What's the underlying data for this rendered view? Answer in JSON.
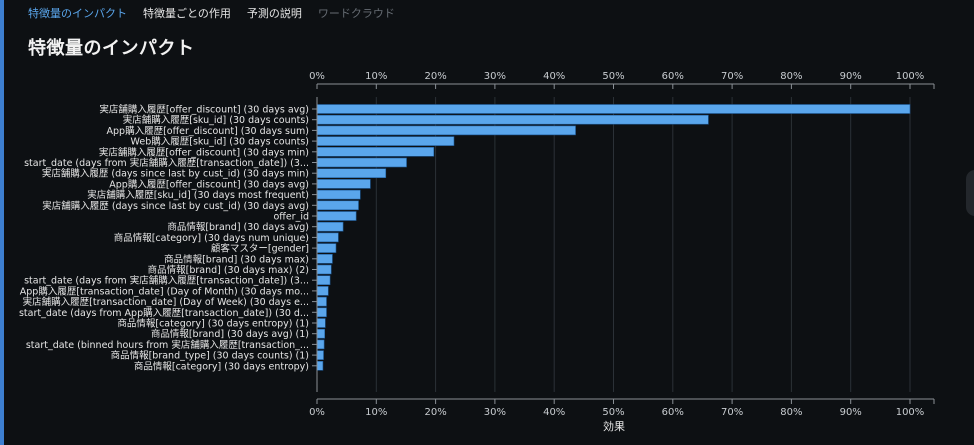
{
  "tabs": [
    {
      "label": "特徴量のインパクト",
      "state": "active"
    },
    {
      "label": "特徴量ごとの作用",
      "state": "normal"
    },
    {
      "label": "予測の説明",
      "state": "normal"
    },
    {
      "label": "ワードクラウド",
      "state": "disabled"
    }
  ],
  "page_title": "特徴量のインパクト",
  "colors": {
    "accent": "#5aa6ec",
    "bar": "#5aa6ec",
    "background": "#0d1013"
  },
  "chart_data": {
    "type": "bar",
    "orientation": "horizontal",
    "xlabel": "効果",
    "xlim": [
      0,
      100
    ],
    "xticks": [
      "0%",
      "10%",
      "20%",
      "30%",
      "40%",
      "50%",
      "60%",
      "70%",
      "80%",
      "90%",
      "100%"
    ],
    "grid": true,
    "categories": [
      "実店舗購入履歴[offer_discount] (30 days avg)",
      "実店舗購入履歴[sku_id] (30 days counts)",
      "App購入履歴[offer_discount] (30 days sum)",
      "Web購入履歴[sku_id] (30 days counts)",
      "実店舗購入履歴[offer_discount] (30 days min)",
      "start_date (days from 実店舗購入履歴[transaction_date]) (3...",
      "実店舗購入履歴 (days since last by cust_id) (30 days min)",
      "App購入履歴[offer_discount] (30 days avg)",
      "実店舗購入履歴[sku_id] (30 days most frequent)",
      "実店舗購入履歴 (days since last by cust_id) (30 days avg)",
      "offer_id",
      "商品情報[brand] (30 days avg)",
      "商品情報[category] (30 days num unique)",
      "顧客マスター[gender]",
      "商品情報[brand] (30 days max)",
      "商品情報[brand] (30 days max) (2)",
      "start_date (days from 実店舗購入履歴[transaction_date]) (3...",
      "App購入履歴[transaction_date] (Day of Month) (30 days mo...",
      "実店舗購入履歴[transaction_date] (Day of Week) (30 days e...",
      "start_date (days from App購入履歴[transaction_date]) (30 d...",
      "商品情報[category] (30 days entropy) (1)",
      "商品情報[brand] (30 days avg) (1)",
      "start_date (binned hours from 実店舗購入履歴[transaction_...",
      "商品情報[brand_type] (30 days counts) (1)",
      "商品情報[category] (30 days entropy)"
    ],
    "values": [
      100,
      66,
      43.6,
      23.1,
      19.7,
      15.1,
      11.6,
      9.0,
      7.3,
      7.0,
      6.6,
      4.4,
      3.6,
      3.2,
      2.6,
      2.4,
      2.2,
      1.9,
      1.6,
      1.6,
      1.4,
      1.3,
      1.2,
      1.1,
      1.0
    ]
  }
}
